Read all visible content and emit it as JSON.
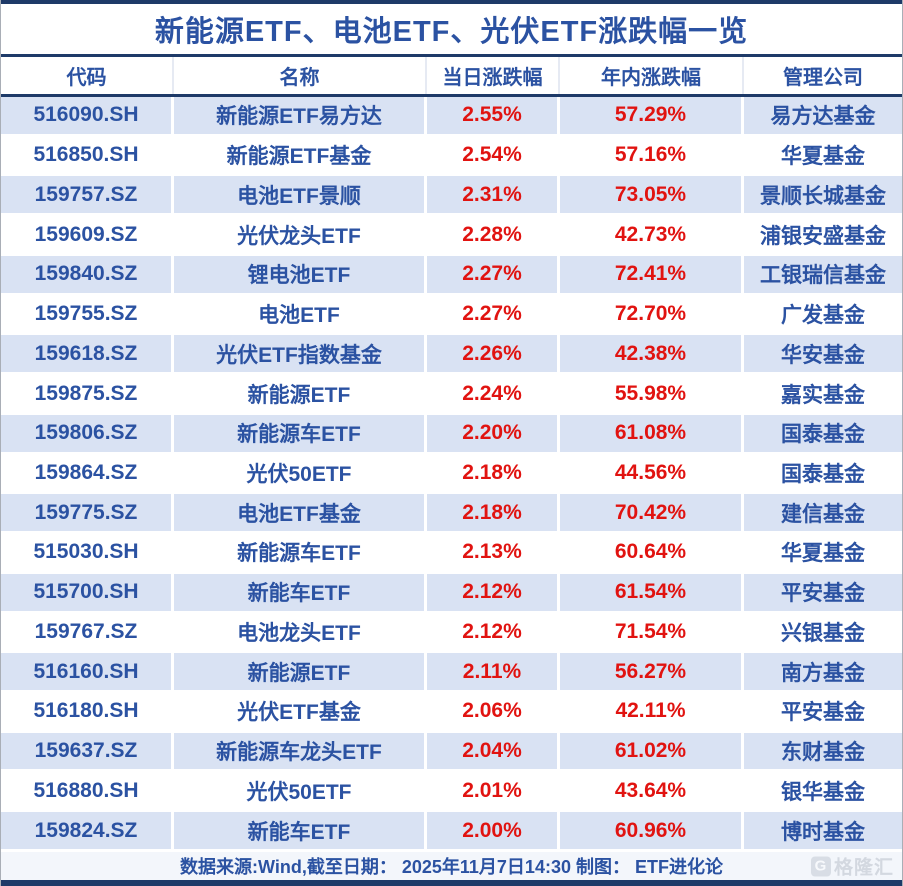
{
  "title": "新能源ETF、电池ETF、光伏ETF涨跌幅一览",
  "columns": [
    "代码",
    "名称",
    "当日涨跌幅",
    "年内涨跌幅",
    "管理公司"
  ],
  "rows": [
    {
      "code": "516090.SH",
      "name": "新能源ETF易方达",
      "daily": "2.55%",
      "ytd": "57.29%",
      "company": "易方达基金"
    },
    {
      "code": "516850.SH",
      "name": "新能源ETF基金",
      "daily": "2.54%",
      "ytd": "57.16%",
      "company": "华夏基金"
    },
    {
      "code": "159757.SZ",
      "name": "电池ETF景顺",
      "daily": "2.31%",
      "ytd": "73.05%",
      "company": "景顺长城基金"
    },
    {
      "code": "159609.SZ",
      "name": "光伏龙头ETF",
      "daily": "2.28%",
      "ytd": "42.73%",
      "company": "浦银安盛基金"
    },
    {
      "code": "159840.SZ",
      "name": "锂电池ETF",
      "daily": "2.27%",
      "ytd": "72.41%",
      "company": "工银瑞信基金"
    },
    {
      "code": "159755.SZ",
      "name": "电池ETF",
      "daily": "2.27%",
      "ytd": "72.70%",
      "company": "广发基金"
    },
    {
      "code": "159618.SZ",
      "name": "光伏ETF指数基金",
      "daily": "2.26%",
      "ytd": "42.38%",
      "company": "华安基金"
    },
    {
      "code": "159875.SZ",
      "name": "新能源ETF",
      "daily": "2.24%",
      "ytd": "55.98%",
      "company": "嘉实基金"
    },
    {
      "code": "159806.SZ",
      "name": "新能源车ETF",
      "daily": "2.20%",
      "ytd": "61.08%",
      "company": "国泰基金"
    },
    {
      "code": "159864.SZ",
      "name": "光伏50ETF",
      "daily": "2.18%",
      "ytd": "44.56%",
      "company": "国泰基金"
    },
    {
      "code": "159775.SZ",
      "name": "电池ETF基金",
      "daily": "2.18%",
      "ytd": "70.42%",
      "company": "建信基金"
    },
    {
      "code": "515030.SH",
      "name": "新能源车ETF",
      "daily": "2.13%",
      "ytd": "60.64%",
      "company": "华夏基金"
    },
    {
      "code": "515700.SH",
      "name": "新能车ETF",
      "daily": "2.12%",
      "ytd": "61.54%",
      "company": "平安基金"
    },
    {
      "code": "159767.SZ",
      "name": "电池龙头ETF",
      "daily": "2.12%",
      "ytd": "71.54%",
      "company": "兴银基金"
    },
    {
      "code": "516160.SH",
      "name": "新能源ETF",
      "daily": "2.11%",
      "ytd": "56.27%",
      "company": "南方基金"
    },
    {
      "code": "516180.SH",
      "name": "光伏ETF基金",
      "daily": "2.06%",
      "ytd": "42.11%",
      "company": "平安基金"
    },
    {
      "code": "159637.SZ",
      "name": "新能源车龙头ETF",
      "daily": "2.04%",
      "ytd": "61.02%",
      "company": "东财基金"
    },
    {
      "code": "516880.SH",
      "name": "光伏50ETF",
      "daily": "2.01%",
      "ytd": "43.64%",
      "company": "银华基金"
    },
    {
      "code": "159824.SZ",
      "name": "新能车ETF",
      "daily": "2.00%",
      "ytd": "60.96%",
      "company": "博时基金"
    }
  ],
  "footer": {
    "note": "数据来源:Wind,截至日期： 2025年11月7日14:30 制图： ETF进化论",
    "watermark": {
      "icon_letter": "G",
      "text": "格隆汇"
    }
  },
  "colors": {
    "border_navy": "#1e3a68",
    "text_blue": "#2b52a2",
    "value_red": "#e11310",
    "row_alt_bg": "#d9e2f3",
    "footer_bg": "#f3f6fb"
  },
  "chart_data": {
    "type": "table",
    "title": "新能源ETF、电池ETF、光伏ETF涨跌幅一览",
    "columns": [
      "代码",
      "名称",
      "当日涨跌幅",
      "年内涨跌幅",
      "管理公司"
    ],
    "rows": [
      [
        "516090.SH",
        "新能源ETF易方达",
        "2.55%",
        "57.29%",
        "易方达基金"
      ],
      [
        "516850.SH",
        "新能源ETF基金",
        "2.54%",
        "57.16%",
        "华夏基金"
      ],
      [
        "159757.SZ",
        "电池ETF景顺",
        "2.31%",
        "73.05%",
        "景顺长城基金"
      ],
      [
        "159609.SZ",
        "光伏龙头ETF",
        "2.28%",
        "42.73%",
        "浦银安盛基金"
      ],
      [
        "159840.SZ",
        "锂电池ETF",
        "2.27%",
        "72.41%",
        "工银瑞信基金"
      ],
      [
        "159755.SZ",
        "电池ETF",
        "2.27%",
        "72.70%",
        "广发基金"
      ],
      [
        "159618.SZ",
        "光伏ETF指数基金",
        "2.26%",
        "42.38%",
        "华安基金"
      ],
      [
        "159875.SZ",
        "新能源ETF",
        "2.24%",
        "55.98%",
        "嘉实基金"
      ],
      [
        "159806.SZ",
        "新能源车ETF",
        "2.20%",
        "61.08%",
        "国泰基金"
      ],
      [
        "159864.SZ",
        "光伏50ETF",
        "2.18%",
        "44.56%",
        "国泰基金"
      ],
      [
        "159775.SZ",
        "电池ETF基金",
        "2.18%",
        "70.42%",
        "建信基金"
      ],
      [
        "515030.SH",
        "新能源车ETF",
        "2.13%",
        "60.64%",
        "华夏基金"
      ],
      [
        "515700.SH",
        "新能车ETF",
        "2.12%",
        "61.54%",
        "平安基金"
      ],
      [
        "159767.SZ",
        "电池龙头ETF",
        "2.12%",
        "71.54%",
        "兴银基金"
      ],
      [
        "516160.SH",
        "新能源ETF",
        "2.11%",
        "56.27%",
        "南方基金"
      ],
      [
        "516180.SH",
        "光伏ETF基金",
        "2.06%",
        "42.11%",
        "平安基金"
      ],
      [
        "159637.SZ",
        "新能源车龙头ETF",
        "2.04%",
        "61.02%",
        "东财基金"
      ],
      [
        "516880.SH",
        "光伏50ETF",
        "2.01%",
        "43.64%",
        "银华基金"
      ],
      [
        "159824.SZ",
        "新能车ETF",
        "2.00%",
        "60.96%",
        "博时基金"
      ]
    ]
  }
}
